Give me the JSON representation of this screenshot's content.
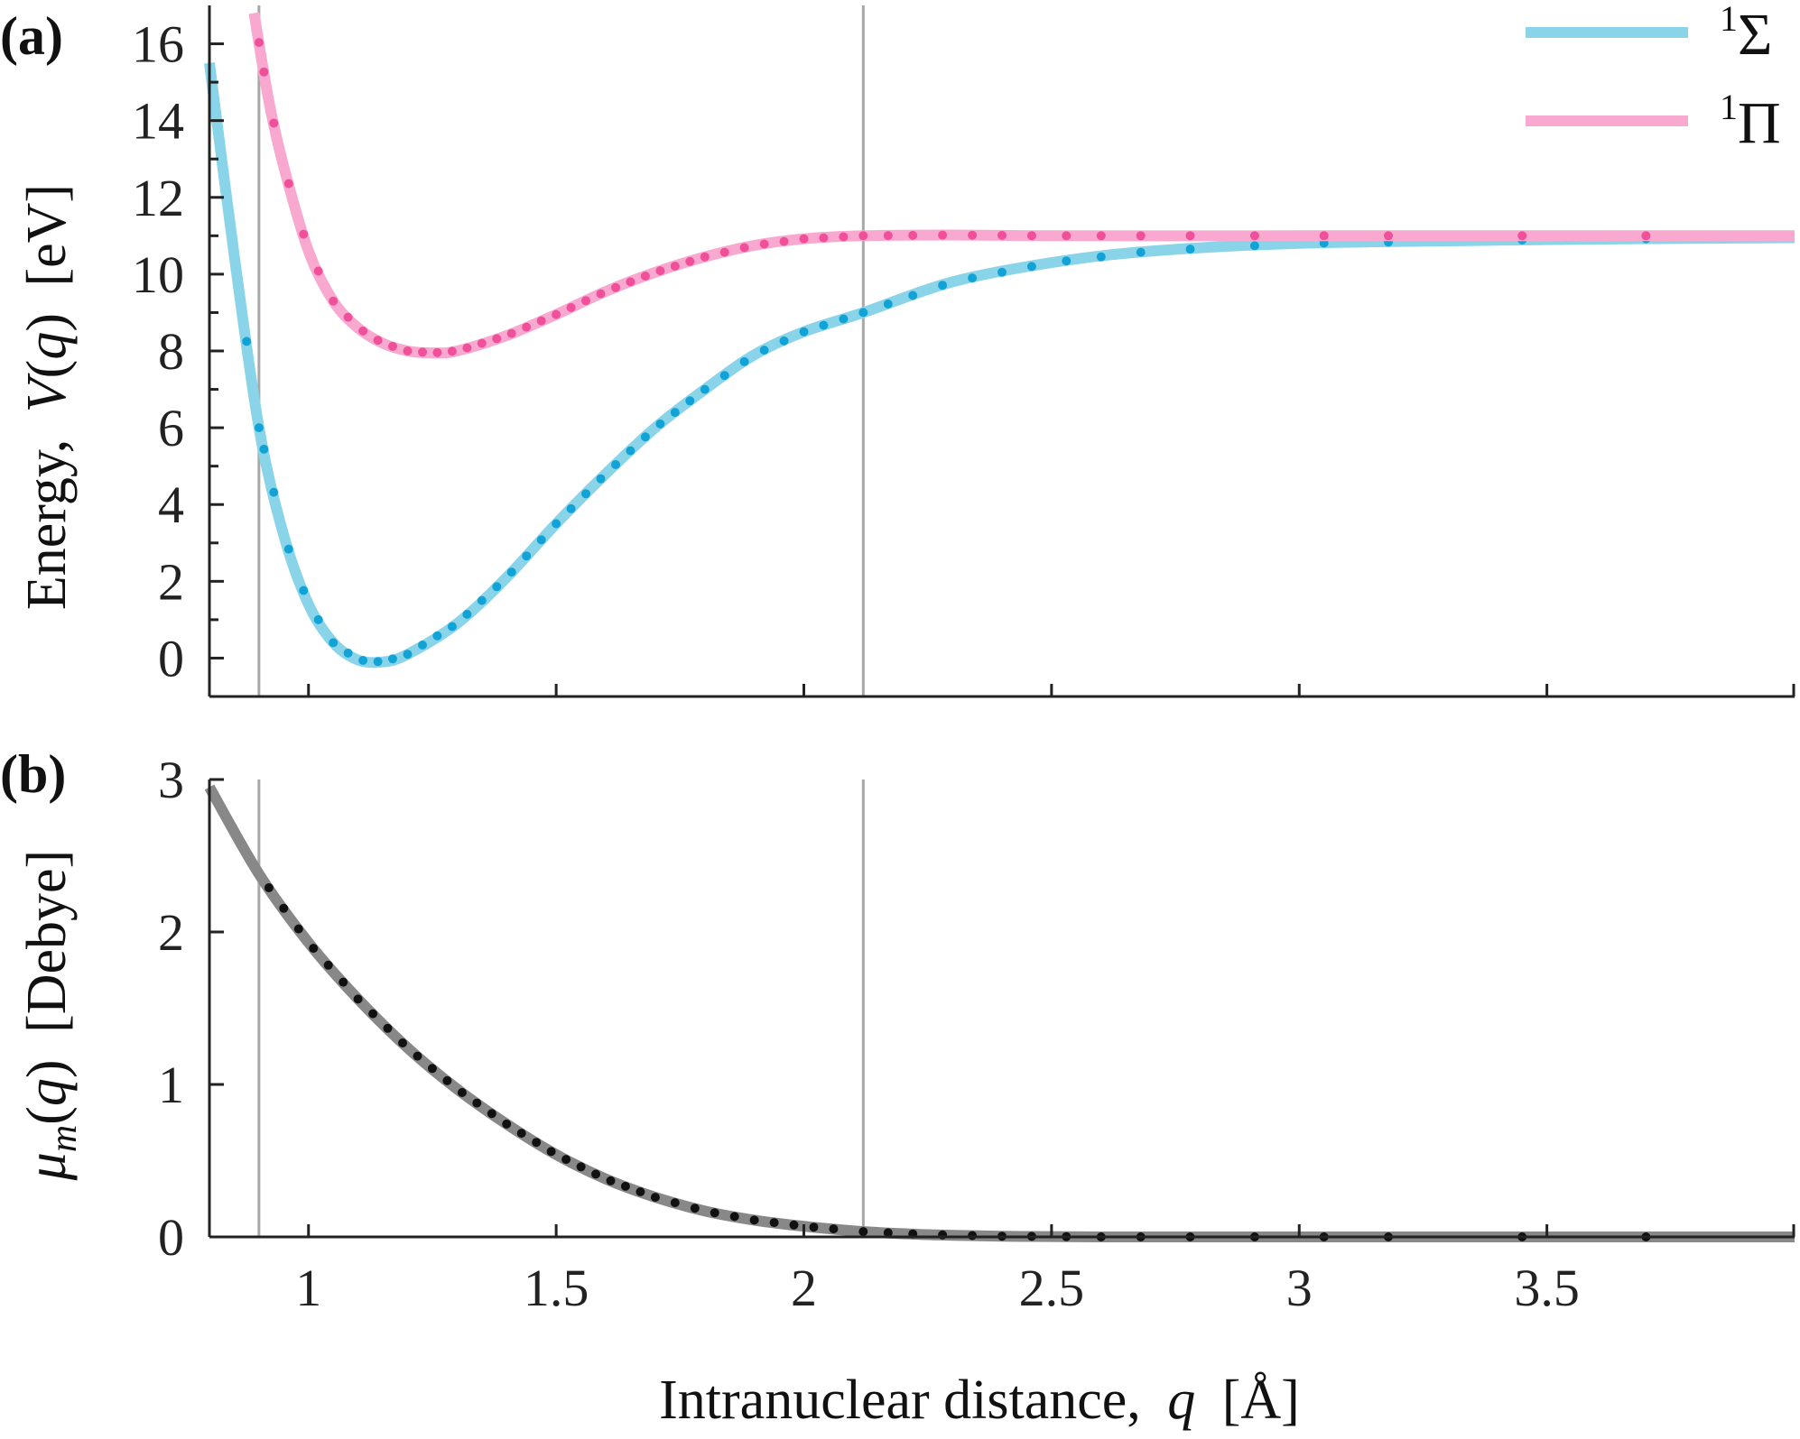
{
  "chart_data": [
    {
      "panel_label": "(a)",
      "type": "line",
      "ylabel_prefix": "Energy,",
      "ylabel_func": "V",
      "ylabel_open": "(",
      "ylabel_var": "q",
      "ylabel_close": ")",
      "ylabel_unit": "[eV]",
      "xlim": [
        0.8,
        4.0
      ],
      "ylim": [
        -1,
        17
      ],
      "yticks": [
        0,
        2,
        4,
        6,
        8,
        10,
        12,
        14,
        16
      ],
      "ytick_labels": [
        "0",
        "2",
        "4",
        "6",
        "8",
        "10",
        "12",
        "14",
        "16"
      ],
      "xticks": [
        1,
        1.5,
        2,
        2.5,
        3,
        3.5
      ],
      "vlines": [
        0.9,
        2.12
      ],
      "legend_position": "top-right",
      "series": [
        {
          "name_sup": "1",
          "name": "Σ",
          "color": "#8ad4ea",
          "marker_color": "#12a3d6",
          "x": [
            0.8,
            0.85,
            0.9,
            0.95,
            1.0,
            1.05,
            1.1,
            1.15,
            1.2,
            1.3,
            1.4,
            1.5,
            1.6,
            1.7,
            1.8,
            1.9,
            2.0,
            2.12,
            2.3,
            2.5,
            2.7,
            3.0,
            3.5,
            4.0
          ],
          "y": [
            15.5,
            10.5,
            6.0,
            3.2,
            1.4,
            0.4,
            -0.05,
            -0.1,
            0.1,
            0.9,
            2.1,
            3.5,
            4.8,
            6.0,
            7.0,
            7.9,
            8.5,
            9.0,
            9.8,
            10.3,
            10.6,
            10.8,
            10.9,
            10.95
          ],
          "markers_x": [
            0.875,
            0.9,
            0.91,
            0.93,
            0.96,
            0.99,
            1.02,
            1.05,
            1.08,
            1.11,
            1.14,
            1.17,
            1.2,
            1.23,
            1.26,
            1.29,
            1.32,
            1.35,
            1.38,
            1.41,
            1.44,
            1.47,
            1.5,
            1.53,
            1.56,
            1.59,
            1.62,
            1.65,
            1.68,
            1.71,
            1.74,
            1.77,
            1.8,
            1.84,
            1.88,
            1.92,
            1.96,
            2.0,
            2.04,
            2.08,
            2.12,
            2.17,
            2.22,
            2.28,
            2.34,
            2.4,
            2.46,
            2.53,
            2.6,
            2.68,
            2.78,
            2.91,
            3.05,
            3.18,
            3.45,
            3.7
          ]
        },
        {
          "name_sup": "1",
          "name": "Π",
          "color": "#f9a8d0",
          "marker_color": "#f0509a",
          "x": [
            0.89,
            0.92,
            0.95,
            1.0,
            1.05,
            1.1,
            1.15,
            1.2,
            1.25,
            1.3,
            1.4,
            1.5,
            1.6,
            1.7,
            1.8,
            1.9,
            2.0,
            2.12,
            2.3,
            2.5,
            3.0,
            3.5,
            4.0
          ],
          "y": [
            16.8,
            14.5,
            12.8,
            10.6,
            9.3,
            8.6,
            8.2,
            8.0,
            7.95,
            8.0,
            8.4,
            8.95,
            9.55,
            10.05,
            10.45,
            10.75,
            10.92,
            11.0,
            11.02,
            11.0,
            11.0,
            11.0,
            11.0
          ],
          "markers_x": [
            0.9,
            0.91,
            0.93,
            0.96,
            0.99,
            1.02,
            1.05,
            1.08,
            1.11,
            1.14,
            1.17,
            1.2,
            1.23,
            1.26,
            1.29,
            1.32,
            1.35,
            1.38,
            1.41,
            1.44,
            1.47,
            1.5,
            1.53,
            1.56,
            1.59,
            1.62,
            1.65,
            1.68,
            1.71,
            1.74,
            1.77,
            1.8,
            1.84,
            1.88,
            1.92,
            1.96,
            2.0,
            2.04,
            2.08,
            2.12,
            2.17,
            2.22,
            2.28,
            2.34,
            2.4,
            2.46,
            2.53,
            2.6,
            2.68,
            2.78,
            2.91,
            3.05,
            3.18,
            3.45,
            3.7
          ]
        }
      ]
    },
    {
      "panel_label": "(b)",
      "type": "line",
      "ylabel_func": "μ",
      "ylabel_sub": "m",
      "ylabel_open": "(",
      "ylabel_var": "q",
      "ylabel_close": ")",
      "ylabel_unit": "[Debye]",
      "xlabel_text": "Intranuclear distance,",
      "xlabel_var": "q",
      "xlabel_unit": "[Å]",
      "xlim": [
        0.8,
        4.0
      ],
      "ylim": [
        0,
        3
      ],
      "yticks": [
        0,
        1,
        2,
        3
      ],
      "ytick_labels": [
        "0",
        "1",
        "2",
        "3"
      ],
      "xticks": [
        1,
        1.5,
        2,
        2.5,
        3,
        3.5
      ],
      "xtick_labels": [
        "1",
        "1.5",
        "2",
        "2.5",
        "3",
        "3.5"
      ],
      "vlines": [
        0.9,
        2.12
      ],
      "series": [
        {
          "color": "#888888",
          "marker_color": "#111111",
          "x": [
            0.8,
            0.9,
            1.0,
            1.1,
            1.2,
            1.3,
            1.4,
            1.5,
            1.6,
            1.7,
            1.8,
            1.9,
            2.0,
            2.12,
            2.25,
            2.4,
            2.6,
            3.0,
            4.0
          ],
          "y": [
            2.95,
            2.38,
            1.93,
            1.56,
            1.24,
            0.97,
            0.74,
            0.54,
            0.38,
            0.26,
            0.17,
            0.11,
            0.07,
            0.035,
            0.015,
            0.005,
            0.0,
            0.0,
            0.0
          ],
          "markers_x": [
            0.92,
            0.95,
            0.98,
            1.01,
            1.04,
            1.07,
            1.1,
            1.13,
            1.16,
            1.19,
            1.22,
            1.25,
            1.28,
            1.31,
            1.34,
            1.37,
            1.4,
            1.43,
            1.46,
            1.49,
            1.52,
            1.55,
            1.58,
            1.61,
            1.64,
            1.67,
            1.7,
            1.74,
            1.78,
            1.82,
            1.86,
            1.9,
            1.94,
            1.98,
            2.02,
            2.06,
            2.12,
            2.17,
            2.22,
            2.28,
            2.34,
            2.4,
            2.46,
            2.53,
            2.6,
            2.68,
            2.78,
            2.91,
            3.05,
            3.18,
            3.45,
            3.7
          ]
        }
      ]
    }
  ]
}
